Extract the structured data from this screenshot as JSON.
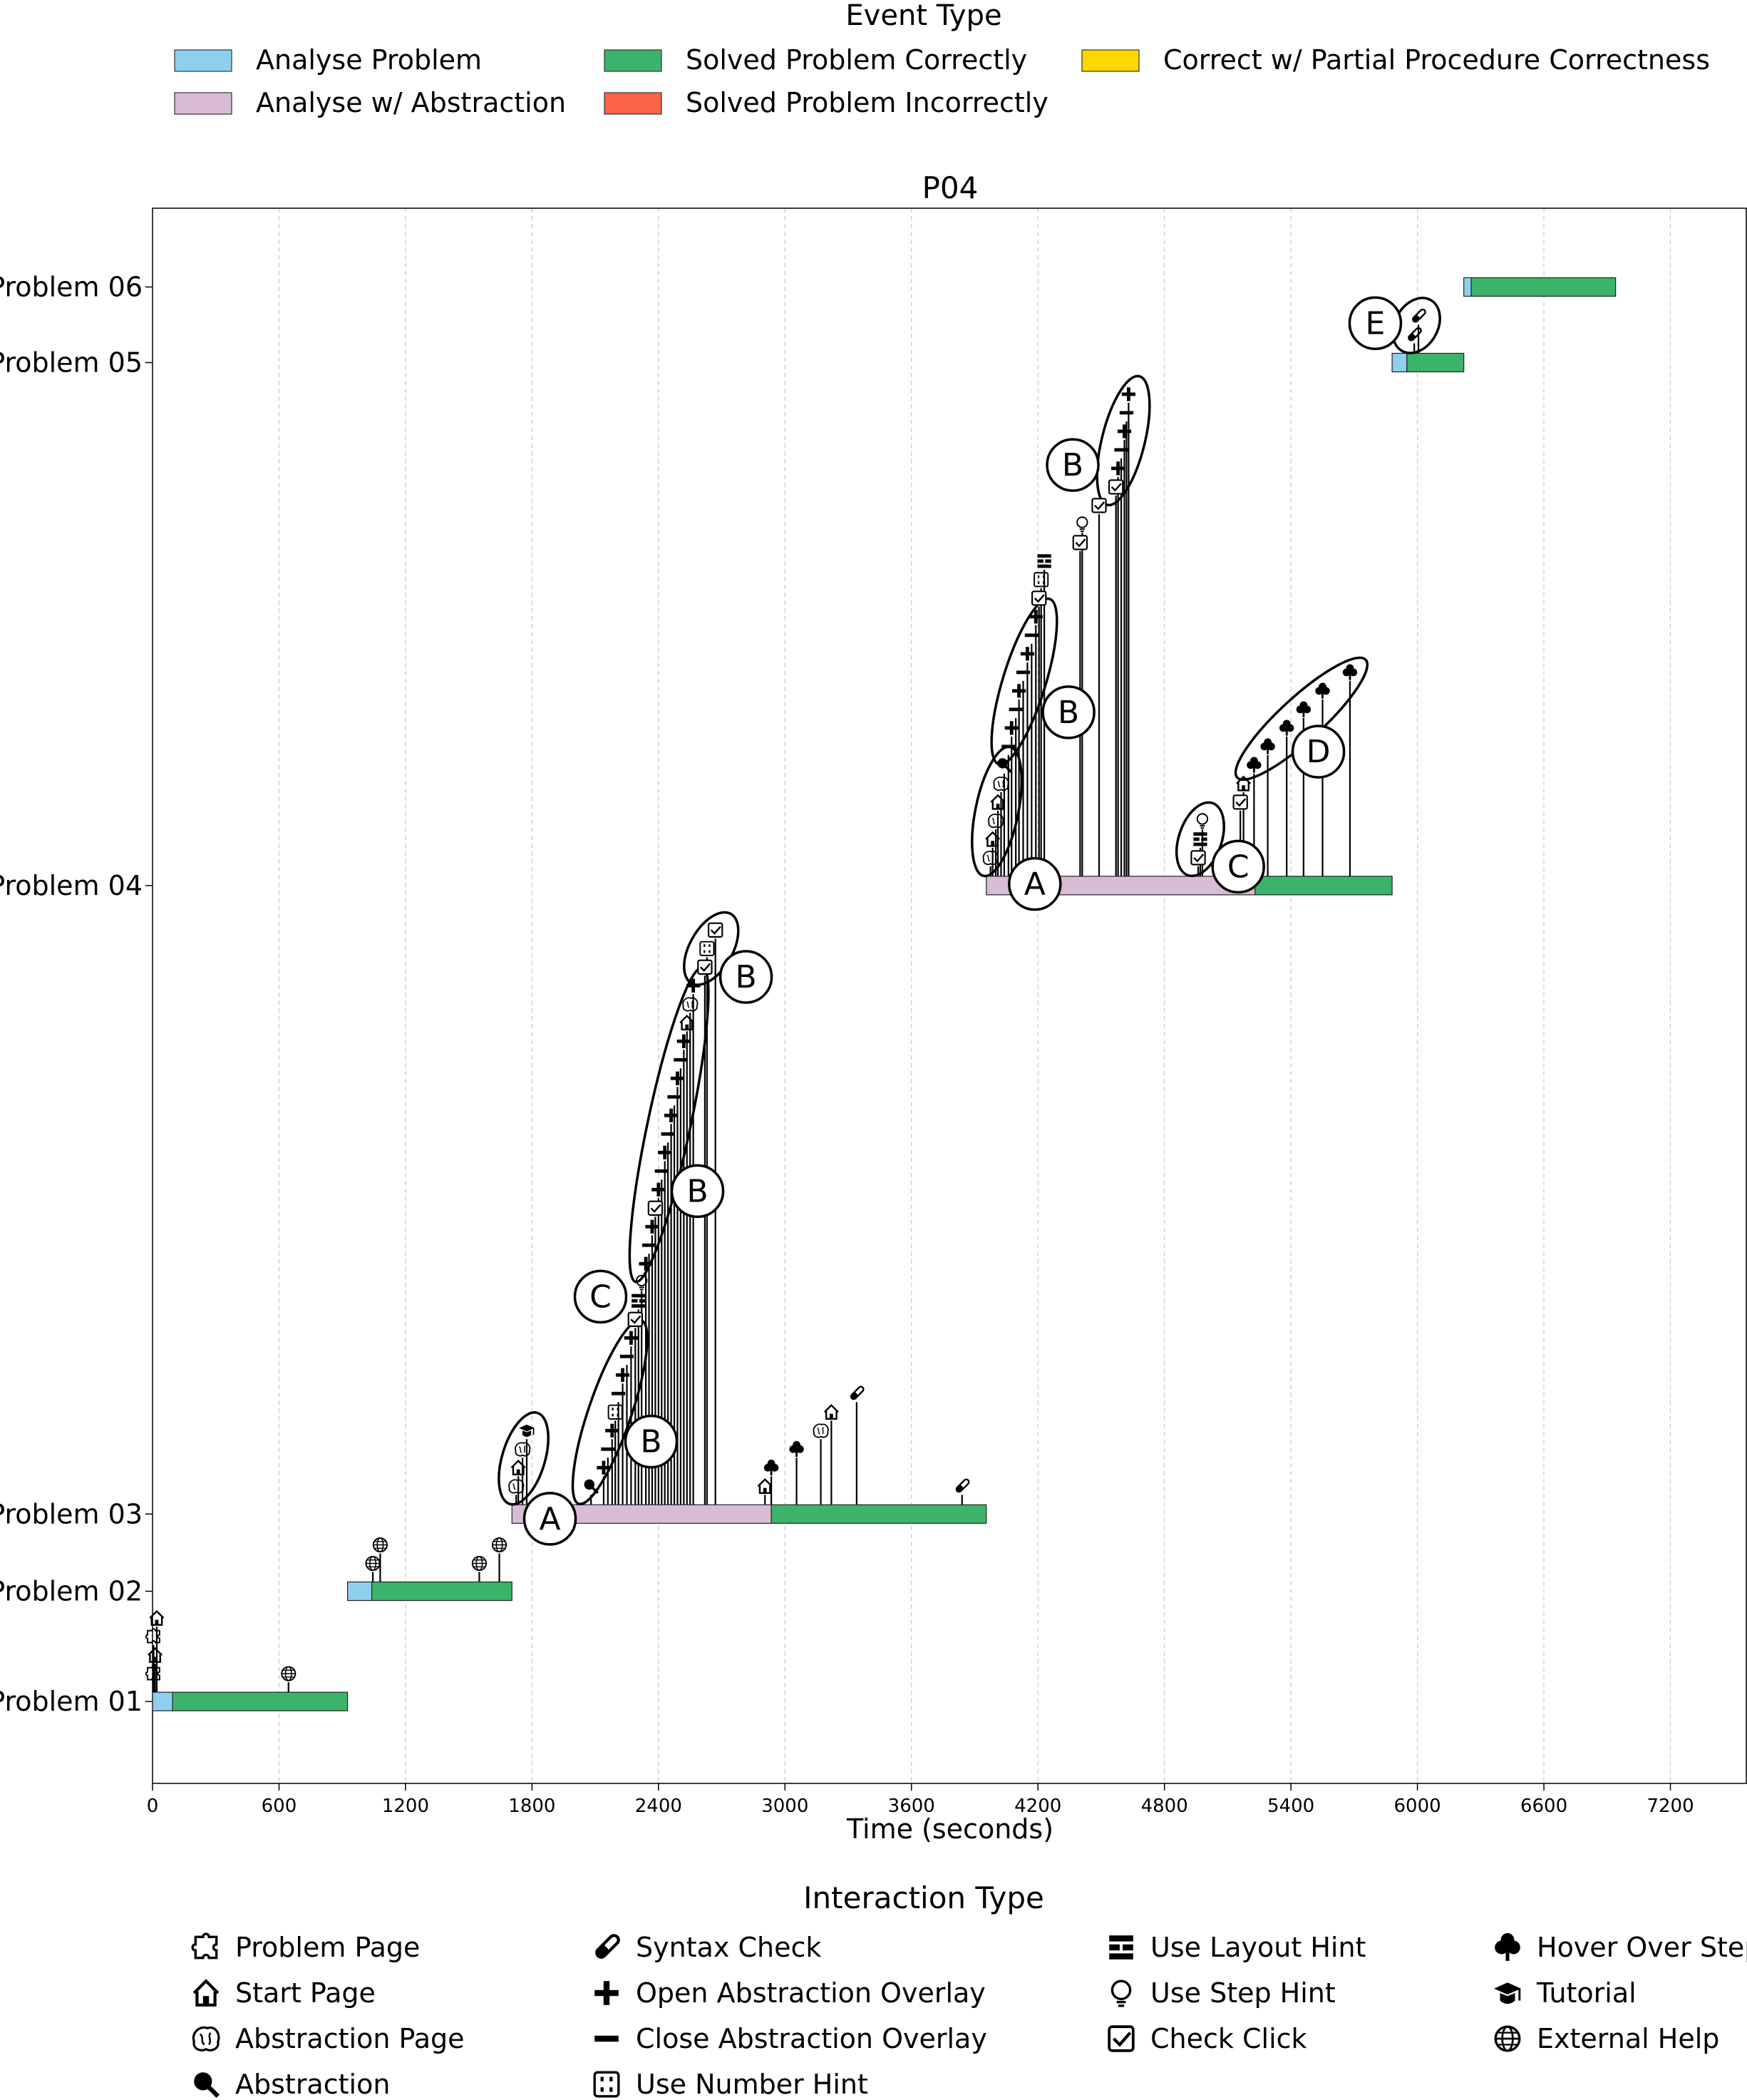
{
  "chart_data": {
    "type": "timeline",
    "title": "P04",
    "xlabel": "Time (seconds)",
    "ylabel": "",
    "xlim": [
      0,
      7560
    ],
    "xticks": [
      0,
      600,
      1200,
      1800,
      2400,
      3000,
      3600,
      4200,
      4800,
      5400,
      6000,
      6600,
      7200
    ],
    "grid": "vertical dashed",
    "event_legend": {
      "title": "Event Type",
      "items": [
        {
          "key": "analyse",
          "label": "Analyse Problem",
          "color": "#8ecfee"
        },
        {
          "key": "analyse_abs",
          "label": "Analyse w/ Abstraction",
          "color": "#d8bcd6"
        },
        {
          "key": "solved_correct",
          "label": "Solved Problem Correctly",
          "color": "#3cb36a"
        },
        {
          "key": "solved_incorrect",
          "label": "Solved Problem Incorrectly",
          "color": "#fb6447"
        },
        {
          "key": "partial",
          "label": "Correct w/ Partial Procedure Correctness",
          "color": "#ffd700"
        }
      ]
    },
    "interaction_legend": {
      "title": "Interaction Type",
      "items": [
        {
          "key": "problem_page",
          "label": "Problem Page",
          "icon": "puzzle-icon"
        },
        {
          "key": "start_page",
          "label": "Start Page",
          "icon": "house-icon"
        },
        {
          "key": "abstraction_page",
          "label": "Abstraction Page",
          "icon": "brain-icon"
        },
        {
          "key": "abstraction",
          "label": "Abstraction",
          "icon": "magnifier-icon"
        },
        {
          "key": "syntax_check",
          "label": "Syntax Check",
          "icon": "test-tube-icon"
        },
        {
          "key": "open_overlay",
          "label": "Open Abstraction Overlay",
          "icon": "plus-icon"
        },
        {
          "key": "close_overlay",
          "label": "Close Abstraction Overlay",
          "icon": "minus-icon"
        },
        {
          "key": "number_hint",
          "label": "Use Number Hint",
          "icon": "number-grid-icon"
        },
        {
          "key": "layout_hint",
          "label": "Use Layout Hint",
          "icon": "layout-icon"
        },
        {
          "key": "step_hint",
          "label": "Use Step Hint",
          "icon": "lightbulb-icon"
        },
        {
          "key": "check_click",
          "label": "Check Click",
          "icon": "checkbox-icon"
        },
        {
          "key": "hover_step",
          "label": "Hover Over Step",
          "icon": "tree-icon"
        },
        {
          "key": "tutorial",
          "label": "Tutorial",
          "icon": "graduation-cap-icon"
        },
        {
          "key": "external_help",
          "label": "External Help",
          "icon": "globe-icon"
        }
      ]
    },
    "problems": [
      {
        "label": "Problem 01",
        "y_frac": 0.052,
        "segments": [
          {
            "event": "analyse",
            "start": 0,
            "end": 95
          },
          {
            "event": "solved_correct",
            "start": 95,
            "end": 925
          }
        ],
        "interactions": [
          {
            "type": "problem_page",
            "t": 5,
            "level": 1
          },
          {
            "type": "problem_page",
            "t": 5,
            "level": 3
          },
          {
            "type": "start_page",
            "t": 12,
            "level": 2
          },
          {
            "type": "start_page",
            "t": 20,
            "level": 4
          },
          {
            "type": "external_help",
            "t": 645,
            "level": 1
          }
        ]
      },
      {
        "label": "Problem 02",
        "y_frac": 0.122,
        "segments": [
          {
            "event": "analyse",
            "start": 925,
            "end": 1040
          },
          {
            "event": "solved_correct",
            "start": 1040,
            "end": 1705
          }
        ],
        "interactions": [
          {
            "type": "external_help",
            "t": 1045,
            "level": 1
          },
          {
            "type": "external_help",
            "t": 1080,
            "level": 2
          },
          {
            "type": "external_help",
            "t": 1550,
            "level": 1
          },
          {
            "type": "external_help",
            "t": 1645,
            "level": 2
          }
        ]
      },
      {
        "label": "Problem 03",
        "y_frac": 0.171,
        "segments": [
          {
            "event": "analyse_abs",
            "start": 1705,
            "end": 2935
          },
          {
            "event": "solved_correct",
            "start": 2935,
            "end": 3955
          }
        ],
        "interactions": [
          {
            "type": "abstraction_page",
            "t": 1725,
            "level": 1
          },
          {
            "type": "start_page",
            "t": 1735,
            "level": 2
          },
          {
            "type": "abstraction_page",
            "t": 1755,
            "level": 3
          },
          {
            "type": "tutorial",
            "t": 1775,
            "level": 4
          },
          {
            "type": "abstraction",
            "t": 2080,
            "level": 1
          },
          {
            "type": "open_overlay",
            "t": 2140,
            "level": 2
          },
          {
            "type": "close_overlay",
            "t": 2160,
            "level": 3
          },
          {
            "type": "open_overlay",
            "t": 2180,
            "level": 4
          },
          {
            "type": "number_hint",
            "t": 2195,
            "level": 5
          },
          {
            "type": "close_overlay",
            "t": 2210,
            "level": 6
          },
          {
            "type": "open_overlay",
            "t": 2230,
            "level": 7
          },
          {
            "type": "close_overlay",
            "t": 2250,
            "level": 8
          },
          {
            "type": "open_overlay",
            "t": 2270,
            "level": 9
          },
          {
            "type": "check_click",
            "t": 2290,
            "level": 10
          },
          {
            "type": "layout_hint",
            "t": 2305,
            "level": 11
          },
          {
            "type": "step_hint",
            "t": 2320,
            "level": 12
          },
          {
            "type": "open_overlay",
            "t": 2340,
            "level": 13
          },
          {
            "type": "close_overlay",
            "t": 2355,
            "level": 14
          },
          {
            "type": "open_overlay",
            "t": 2370,
            "level": 15
          },
          {
            "type": "check_click",
            "t": 2385,
            "level": 16
          },
          {
            "type": "open_overlay",
            "t": 2400,
            "level": 17
          },
          {
            "type": "close_overlay",
            "t": 2415,
            "level": 18
          },
          {
            "type": "open_overlay",
            "t": 2430,
            "level": 19
          },
          {
            "type": "close_overlay",
            "t": 2445,
            "level": 20
          },
          {
            "type": "open_overlay",
            "t": 2460,
            "level": 21
          },
          {
            "type": "close_overlay",
            "t": 2475,
            "level": 22
          },
          {
            "type": "open_overlay",
            "t": 2490,
            "level": 23
          },
          {
            "type": "close_overlay",
            "t": 2505,
            "level": 24
          },
          {
            "type": "open_overlay",
            "t": 2520,
            "level": 25
          },
          {
            "type": "start_page",
            "t": 2535,
            "level": 26
          },
          {
            "type": "abstraction_page",
            "t": 2550,
            "level": 27
          },
          {
            "type": "open_overlay",
            "t": 2565,
            "level": 28
          },
          {
            "type": "check_click",
            "t": 2620,
            "level": 29
          },
          {
            "type": "number_hint",
            "t": 2630,
            "level": 30
          },
          {
            "type": "check_click",
            "t": 2670,
            "level": 31
          },
          {
            "type": "start_page",
            "t": 2905,
            "level": 1
          },
          {
            "type": "hover_step",
            "t": 2935,
            "level": 2
          },
          {
            "type": "hover_step",
            "t": 3055,
            "level": 3
          },
          {
            "type": "abstraction_page",
            "t": 3170,
            "level": 4
          },
          {
            "type": "start_page",
            "t": 3220,
            "level": 5
          },
          {
            "type": "syntax_check",
            "t": 3340,
            "level": 6
          },
          {
            "type": "syntax_check",
            "t": 3840,
            "level": 1
          }
        ]
      },
      {
        "label": "Problem 04",
        "y_frac": 0.57,
        "segments": [
          {
            "event": "analyse_abs",
            "start": 3955,
            "end": 5230
          },
          {
            "event": "solved_correct",
            "start": 5230,
            "end": 5880
          }
        ],
        "interactions": [
          {
            "type": "abstraction_page",
            "t": 3975,
            "level": 1
          },
          {
            "type": "start_page",
            "t": 3985,
            "level": 2
          },
          {
            "type": "abstraction_page",
            "t": 4000,
            "level": 3
          },
          {
            "type": "start_page",
            "t": 4010,
            "level": 4
          },
          {
            "type": "abstraction_page",
            "t": 4025,
            "level": 5
          },
          {
            "type": "abstraction",
            "t": 4040,
            "level": 6
          },
          {
            "type": "close_overlay",
            "t": 4060,
            "level": 7
          },
          {
            "type": "open_overlay",
            "t": 4075,
            "level": 8
          },
          {
            "type": "close_overlay",
            "t": 4095,
            "level": 9
          },
          {
            "type": "open_overlay",
            "t": 4110,
            "level": 10
          },
          {
            "type": "close_overlay",
            "t": 4130,
            "level": 11
          },
          {
            "type": "open_overlay",
            "t": 4150,
            "level": 12
          },
          {
            "type": "close_overlay",
            "t": 4170,
            "level": 13
          },
          {
            "type": "open_overlay",
            "t": 4190,
            "level": 14
          },
          {
            "type": "check_click",
            "t": 4205,
            "level": 15
          },
          {
            "type": "number_hint",
            "t": 4215,
            "level": 16
          },
          {
            "type": "layout_hint",
            "t": 4230,
            "level": 17
          },
          {
            "type": "check_click",
            "t": 4400,
            "level": 18
          },
          {
            "type": "step_hint",
            "t": 4410,
            "level": 19
          },
          {
            "type": "check_click",
            "t": 4490,
            "level": 20
          },
          {
            "type": "check_click",
            "t": 4570,
            "level": 21
          },
          {
            "type": "open_overlay",
            "t": 4580,
            "level": 22
          },
          {
            "type": "close_overlay",
            "t": 4595,
            "level": 23
          },
          {
            "type": "open_overlay",
            "t": 4610,
            "level": 24
          },
          {
            "type": "close_overlay",
            "t": 4620,
            "level": 25
          },
          {
            "type": "open_overlay",
            "t": 4630,
            "level": 26
          },
          {
            "type": "check_click",
            "t": 4960,
            "level": 1
          },
          {
            "type": "layout_hint",
            "t": 4970,
            "level": 2
          },
          {
            "type": "step_hint",
            "t": 4980,
            "level": 3
          },
          {
            "type": "check_click",
            "t": 5160,
            "level": 4
          },
          {
            "type": "start_page",
            "t": 5175,
            "level": 5
          },
          {
            "type": "hover_step",
            "t": 5225,
            "level": 6
          },
          {
            "type": "hover_step",
            "t": 5290,
            "level": 7
          },
          {
            "type": "hover_step",
            "t": 5380,
            "level": 8
          },
          {
            "type": "hover_step",
            "t": 5460,
            "level": 9
          },
          {
            "type": "hover_step",
            "t": 5550,
            "level": 10
          },
          {
            "type": "hover_step",
            "t": 5680,
            "level": 11
          }
        ]
      },
      {
        "label": "Problem 05",
        "y_frac": 0.902,
        "segments": [
          {
            "event": "analyse",
            "start": 5880,
            "end": 5950
          },
          {
            "event": "solved_correct",
            "start": 5950,
            "end": 6220
          }
        ],
        "interactions": [
          {
            "type": "syntax_check",
            "t": 5985,
            "level": 1
          },
          {
            "type": "syntax_check",
            "t": 6005,
            "level": 2
          }
        ]
      },
      {
        "label": "Problem 06",
        "y_frac": 0.95,
        "segments": [
          {
            "event": "analyse",
            "start": 6220,
            "end": 6255
          },
          {
            "event": "solved_correct",
            "start": 6255,
            "end": 6940
          }
        ],
        "interactions": []
      }
    ],
    "annotations": [
      {
        "label": "A",
        "t": 1885,
        "y_frac": 0.168,
        "kind": "circle"
      },
      {
        "label": "B",
        "t": 2365,
        "y_frac": 0.217,
        "kind": "circle"
      },
      {
        "label": "C",
        "t": 2125,
        "y_frac": 0.309,
        "kind": "circle"
      },
      {
        "label": "B",
        "t": 2585,
        "y_frac": 0.376,
        "kind": "circle"
      },
      {
        "label": "B",
        "t": 2815,
        "y_frac": 0.512,
        "kind": "circle"
      },
      {
        "label": "A",
        "t": 4185,
        "y_frac": 0.571,
        "kind": "circle"
      },
      {
        "label": "C",
        "t": 5150,
        "y_frac": 0.582,
        "kind": "circle"
      },
      {
        "label": "D",
        "t": 5530,
        "y_frac": 0.655,
        "kind": "circle"
      },
      {
        "label": "B",
        "t": 4345,
        "y_frac": 0.68,
        "kind": "circle"
      },
      {
        "label": "B",
        "t": 4365,
        "y_frac": 0.837,
        "kind": "circle"
      },
      {
        "label": "E",
        "t": 5800,
        "y_frac": 0.927,
        "kind": "circle"
      }
    ],
    "clusters": [
      {
        "t0": 1720,
        "t1": 1800,
        "lv0": 1,
        "lv1": 4,
        "row": 2
      },
      {
        "t0": 2050,
        "t1": 2290,
        "lv0": 1,
        "lv1": 9,
        "row": 2
      },
      {
        "t0": 2310,
        "t1": 2590,
        "lv0": 13,
        "lv1": 28,
        "row": 2
      },
      {
        "t0": 2600,
        "t1": 2700,
        "lv0": 29,
        "lv1": 31,
        "row": 2
      },
      {
        "t0": 3960,
        "t1": 4050,
        "lv0": 1,
        "lv1": 6,
        "row": 3
      },
      {
        "t0": 4040,
        "t1": 4230,
        "lv0": 7,
        "lv1": 14,
        "row": 3
      },
      {
        "t0": 4550,
        "t1": 4660,
        "lv0": 21,
        "lv1": 26,
        "row": 3
      },
      {
        "t0": 4940,
        "t1": 5000,
        "lv0": 1,
        "lv1": 3,
        "row": 3
      },
      {
        "t0": 5210,
        "t1": 5690,
        "lv0": 6,
        "lv1": 11,
        "row": 3
      },
      {
        "t0": 5970,
        "t1": 6020,
        "lv0": 1,
        "lv1": 2,
        "row": 4
      }
    ]
  }
}
